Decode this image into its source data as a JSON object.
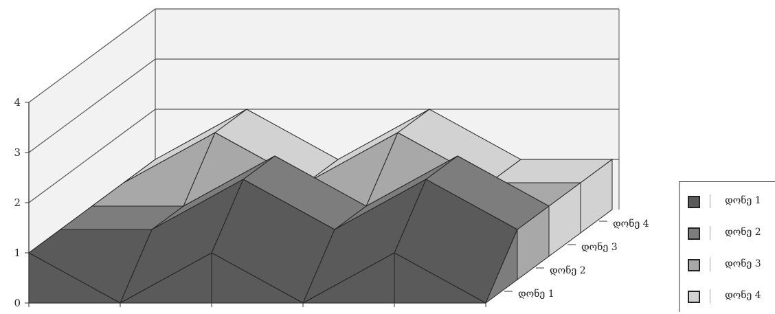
{
  "chart_data": {
    "type": "3d-surface",
    "title": "",
    "categories": [
      "",
      "",
      "",
      "",
      "",
      ""
    ],
    "series": [
      {
        "name": "დონე 1",
        "values": [
          1,
          0,
          1,
          0,
          1,
          0
        ]
      },
      {
        "name": "დონე 2",
        "values": [
          1,
          1,
          2,
          1,
          2,
          1
        ]
      },
      {
        "name": "დონე 3",
        "values": [
          1,
          1,
          2,
          1,
          2,
          1
        ]
      },
      {
        "name": "დონე 4",
        "values": [
          1,
          2,
          1,
          2,
          1,
          1
        ]
      }
    ],
    "yticks": [
      "0",
      "1",
      "2",
      "3",
      "4"
    ],
    "ylim": [
      0,
      4
    ],
    "grid": true,
    "legend_position": "right",
    "colors": {
      "series1": "#5a5a5a",
      "series2": "#7d7d7d",
      "series3": "#a8a8a8",
      "series4": "#d2d2d2",
      "wall": "#f2f2f2",
      "grid": "#555555",
      "edge": "#222222"
    }
  }
}
